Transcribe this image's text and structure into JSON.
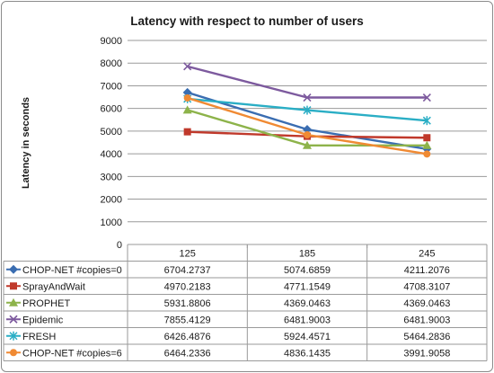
{
  "chart_data": {
    "type": "line",
    "title": "Latency with respect to number of users",
    "xlabel": "",
    "ylabel": "Latency in seconds",
    "categories": [
      "125",
      "185",
      "245"
    ],
    "ylim": [
      0,
      9000
    ],
    "yticks": [
      0,
      1000,
      2000,
      3000,
      4000,
      5000,
      6000,
      7000,
      8000,
      9000
    ],
    "grid": true,
    "legend": "data-table-left",
    "series": [
      {
        "name": "CHOP-NET #copies=0",
        "color": "#3a6db1",
        "marker": "diamond",
        "values": [
          6704.2737,
          5074.6859,
          4211.2076
        ],
        "labels": [
          "6704.2737",
          "5074.6859",
          "4211.2076"
        ]
      },
      {
        "name": "SprayAndWait",
        "color": "#c0392b",
        "marker": "square",
        "values": [
          4970.2183,
          4771.1549,
          4708.3107
        ],
        "labels": [
          "4970.2183",
          "4771.1549",
          "4708.3107"
        ]
      },
      {
        "name": "PROPHET",
        "color": "#8db34a",
        "marker": "triangle",
        "values": [
          5931.8806,
          4369.0463,
          4369.0463
        ],
        "labels": [
          "5931.8806",
          "4369.0463",
          "4369.0463"
        ]
      },
      {
        "name": "Epidemic",
        "color": "#7d5a9e",
        "marker": "x",
        "values": [
          7855.4129,
          6481.9003,
          6481.9003
        ],
        "labels": [
          "7855.4129",
          "6481.9003",
          "6481.9003"
        ]
      },
      {
        "name": "FRESH",
        "color": "#2aaec5",
        "marker": "star",
        "values": [
          6426.4876,
          5924.4571,
          5464.2836
        ],
        "labels": [
          "6426.4876",
          "5924.4571",
          "5464.2836"
        ]
      },
      {
        "name": "CHOP-NET #copies=6",
        "color": "#f08a33",
        "marker": "circle",
        "values": [
          6464.2336,
          4836.1435,
          3991.9058
        ],
        "labels": [
          "6464.2336",
          "4836.1435",
          "3991.9058"
        ]
      }
    ]
  }
}
